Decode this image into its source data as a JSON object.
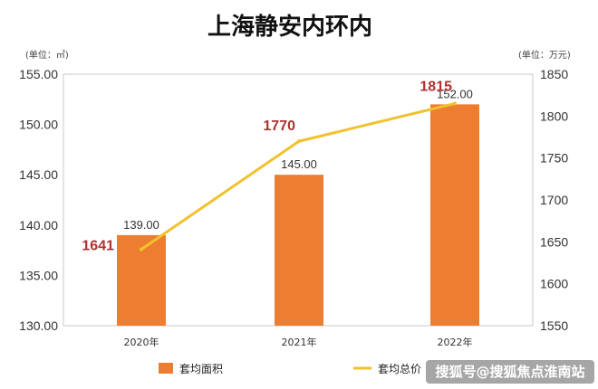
{
  "chart_data": {
    "type": "bar",
    "title": "上海静安内环内",
    "categories": [
      "2020年",
      "2021年",
      "2022年"
    ],
    "series": [
      {
        "name": "套均面积",
        "type": "bar",
        "axis": "left",
        "color": "#ED7D31",
        "values": [
          139.0,
          145.0,
          152.0
        ],
        "labels": [
          "139.00",
          "145.00",
          "152.00"
        ]
      },
      {
        "name": "套均总价",
        "type": "line",
        "axis": "right",
        "color": "#F2C12E",
        "values": [
          1641,
          1770,
          1815
        ],
        "labels": [
          "1641",
          "1770",
          "1815"
        ]
      }
    ],
    "left_axis": {
      "unit": "(单位：㎡)",
      "ylim": [
        130,
        155
      ],
      "ticks": [
        "130.00",
        "135.00",
        "140.00",
        "145.00",
        "150.00",
        "155.00"
      ]
    },
    "right_axis": {
      "unit": "(单位：万元)",
      "ylim": [
        1550,
        1850
      ],
      "ticks": [
        "1550",
        "1600",
        "1650",
        "1700",
        "1750",
        "1800",
        "1850"
      ]
    },
    "grid": false,
    "legend": "bottom"
  },
  "watermark": "搜狐号@搜狐焦点淮南站"
}
